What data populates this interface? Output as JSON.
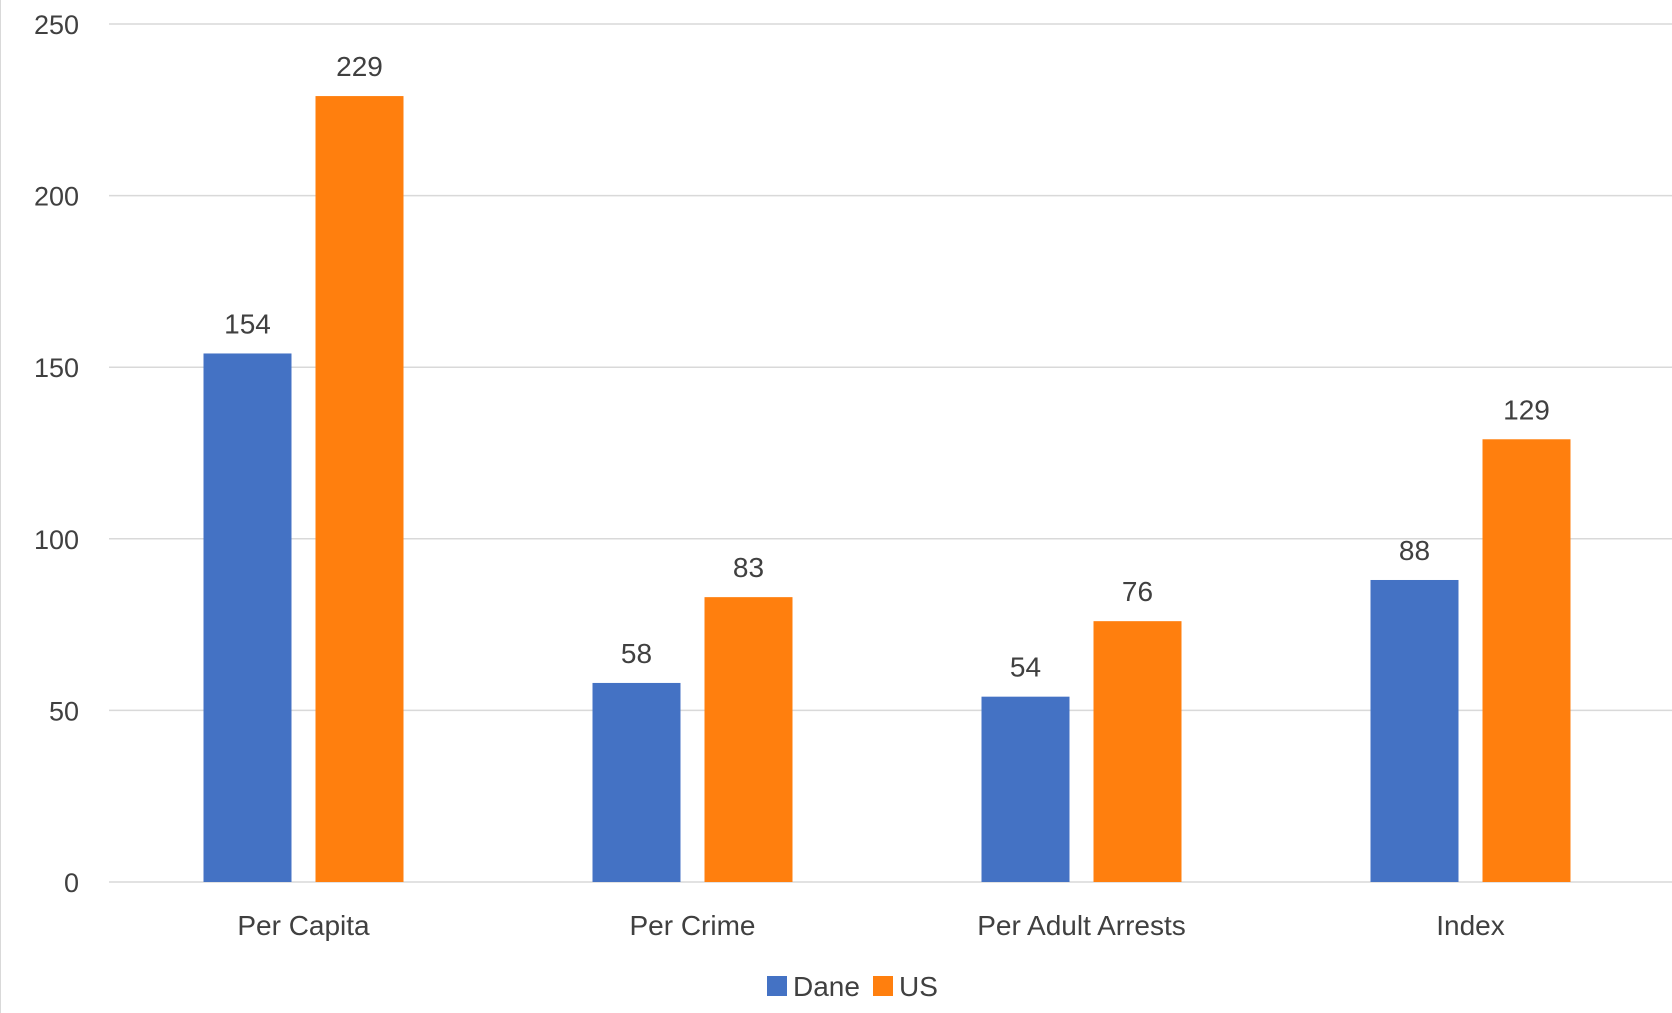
{
  "colors": {
    "dane": "#4472C4",
    "us": "#FF7F0E",
    "grid": "#d9d9d9",
    "text": "#404040"
  },
  "chart_data": {
    "type": "bar",
    "title": "",
    "xlabel": "",
    "ylabel": "",
    "categories": [
      "Per Capita",
      "Per Crime",
      "Per Adult Arrests",
      "Index"
    ],
    "series": [
      {
        "name": "Dane",
        "values": [
          154,
          58,
          54,
          88
        ],
        "color": "#4472C4"
      },
      {
        "name": "US",
        "values": [
          229,
          83,
          76,
          129
        ],
        "color": "#FF7F0E"
      }
    ],
    "ylim": [
      0,
      250
    ],
    "yticks": [
      0,
      50,
      100,
      150,
      200,
      250
    ],
    "grid": true,
    "legend": "bottom-center",
    "data_labels": true
  }
}
